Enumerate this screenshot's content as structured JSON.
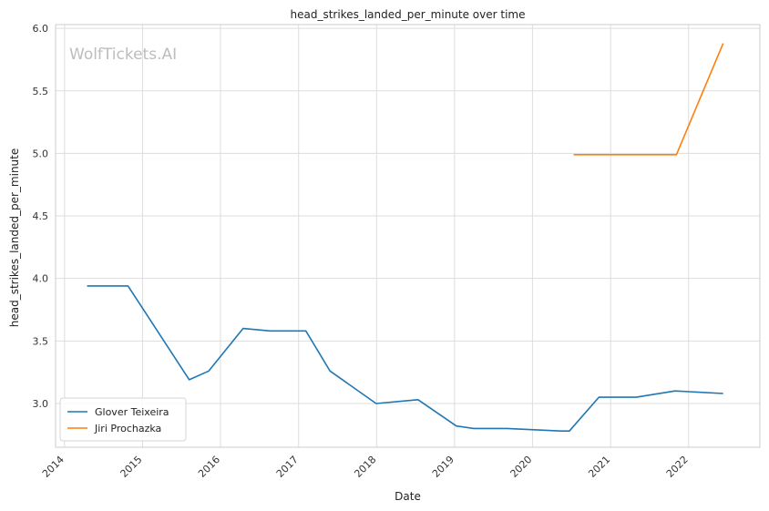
{
  "chart_data": {
    "type": "line",
    "title": "head_strikes_landed_per_minute over time",
    "xlabel": "Date",
    "ylabel": "head_strikes_landed_per_minute",
    "watermark": "WolfTickets.AI",
    "grid": true,
    "legend_position": "bottom-left",
    "xlim": [
      "2013-11-20",
      "2022-12-01"
    ],
    "ylim": [
      2.65,
      6.03
    ],
    "x_ticks": [
      "2014",
      "2015",
      "2016",
      "2017",
      "2018",
      "2019",
      "2020",
      "2021",
      "2022"
    ],
    "y_ticks": [
      "3.0",
      "3.5",
      "4.0",
      "4.5",
      "5.0",
      "5.5",
      "6.0"
    ],
    "series": [
      {
        "name": "Glover Teixeira",
        "color": "#1f77b4",
        "points": [
          [
            "2014-04-16",
            3.94
          ],
          [
            "2014-10-25",
            3.94
          ],
          [
            "2015-08-08",
            3.19
          ],
          [
            "2015-11-07",
            3.26
          ],
          [
            "2016-04-16",
            3.6
          ],
          [
            "2016-08-20",
            3.58
          ],
          [
            "2017-02-04",
            3.58
          ],
          [
            "2017-05-28",
            3.26
          ],
          [
            "2017-12-30",
            3.0
          ],
          [
            "2018-07-14",
            3.03
          ],
          [
            "2019-01-10",
            2.82
          ],
          [
            "2019-04-01",
            2.8
          ],
          [
            "2019-09-05",
            2.8
          ],
          [
            "2020-05-13",
            2.78
          ],
          [
            "2020-06-22",
            2.78
          ],
          [
            "2020-11-07",
            3.05
          ],
          [
            "2021-05-01",
            3.05
          ],
          [
            "2021-10-30",
            3.1
          ],
          [
            "2022-06-12",
            3.08
          ]
        ]
      },
      {
        "name": "Jiri Prochazka",
        "color": "#ff7f0e",
        "points": [
          [
            "2020-07-12",
            4.99
          ],
          [
            "2021-05-01",
            4.99
          ],
          [
            "2021-11-05",
            4.99
          ],
          [
            "2022-06-12",
            5.88
          ]
        ]
      }
    ]
  }
}
